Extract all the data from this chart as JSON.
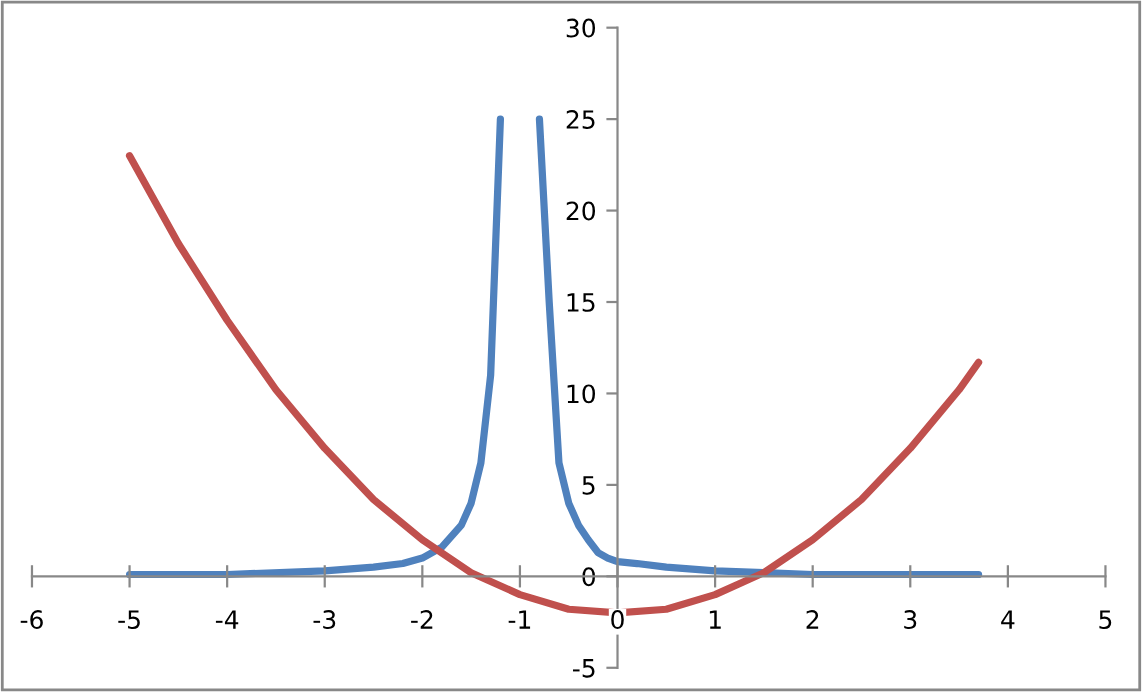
{
  "chart_data": {
    "type": "line",
    "xlim": [
      -6,
      5
    ],
    "ylim": [
      -5,
      30
    ],
    "xticks": [
      -6,
      -5,
      -4,
      -3,
      -2,
      -1,
      0,
      1,
      2,
      3,
      4,
      5
    ],
    "yticks": [
      -5,
      0,
      5,
      10,
      15,
      20,
      25,
      30
    ],
    "grid": false,
    "legend": false,
    "marker": "none",
    "line_style": "solid",
    "series": [
      {
        "color": "#4f81bd",
        "x": [
          -5,
          -4,
          -3,
          -2.5,
          -2.2,
          -2,
          -1.8,
          -1.6,
          -1.5,
          -1.4,
          -1.3,
          -1.2,
          -1.0,
          -0.8,
          -0.7,
          -0.6,
          -0.5,
          -0.4,
          -0.3,
          -0.2,
          -0.1,
          0,
          0.2,
          0.5,
          1,
          1.5,
          2,
          3,
          3.7
        ],
        "values": [
          0.1,
          0.1,
          0.3,
          0.5,
          0.7,
          1,
          1.6,
          2.8,
          4,
          6.2,
          11,
          25,
          null,
          25,
          15,
          6.2,
          4,
          2.8,
          2,
          1.3,
          1,
          0.8,
          0.7,
          0.5,
          0.3,
          0.2,
          0.1,
          0.1,
          0.1
        ]
      },
      {
        "color": "#c0504d",
        "x": [
          -5,
          -4.5,
          -4,
          -3.5,
          -3,
          -2.5,
          -2,
          -1.5,
          -1,
          -0.5,
          0,
          0.5,
          1,
          1.5,
          2,
          2.5,
          3,
          3.5,
          3.7
        ],
        "values": [
          23,
          18.2,
          14,
          10.2,
          7,
          4.2,
          2,
          0.2,
          -1,
          -1.8,
          -2,
          -1.8,
          -1,
          0.2,
          2,
          4.2,
          7,
          10.2,
          11.7
        ]
      }
    ]
  }
}
